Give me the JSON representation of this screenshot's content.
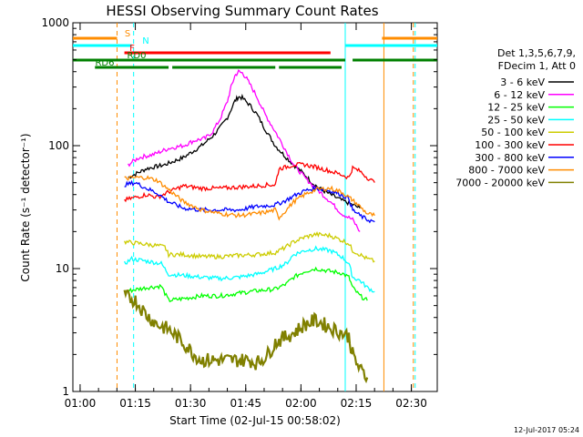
{
  "chart_data": {
    "type": "line",
    "title": "HESSI Observing Summary Count Rates",
    "xlabel": "Start Time (02-Jul-15 00:58:02)",
    "ylabel": "Count Rate (s⁻¹ detector⁻¹)",
    "yscale": "log",
    "ylim": [
      1,
      1000
    ],
    "xlim_minutes": [
      0,
      99
    ],
    "x_ticks": [
      "01:00",
      "01:15",
      "01:30",
      "01:45",
      "02:00",
      "02:15",
      "02:30"
    ],
    "y_ticks": [
      "1",
      "10",
      "100",
      "1000"
    ],
    "footer": "12-Jul-2017 05:24",
    "legend_header": [
      "Det 1,3,5,6,7,9,",
      "FDecim 1, Att 0"
    ],
    "legend_position": "right",
    "series": [
      {
        "name": "3 - 6 keV",
        "color": "#000000",
        "x": [
          15,
          20,
          25,
          30,
          35,
          38,
          40,
          42,
          44,
          45,
          46,
          48,
          50,
          52,
          55,
          58,
          60,
          63,
          65,
          67,
          70,
          73,
          76,
          78
        ],
        "y": [
          55,
          65,
          70,
          80,
          100,
          120,
          140,
          170,
          230,
          250,
          245,
          215,
          180,
          140,
          100,
          80,
          70,
          58,
          50,
          45,
          40,
          36,
          33,
          31
        ]
      },
      {
        "name": "6 - 12 keV",
        "color": "#ff00ff",
        "x": [
          15,
          18,
          22,
          26,
          30,
          33,
          36,
          38,
          40,
          42,
          43,
          44,
          45,
          46,
          47,
          48,
          50,
          52,
          55,
          58,
          60,
          63,
          66,
          70,
          73,
          76,
          78
        ],
        "y": [
          70,
          80,
          85,
          95,
          100,
          110,
          115,
          130,
          165,
          230,
          300,
          370,
          400,
          390,
          360,
          320,
          250,
          185,
          130,
          90,
          70,
          55,
          45,
          35,
          28,
          25,
          20
        ]
      },
      {
        "name": "12 - 25 keV",
        "color": "#00ff00",
        "x": [
          14,
          20,
          24,
          26,
          30,
          35,
          40,
          45,
          50,
          55,
          58,
          60,
          63,
          66,
          70,
          73,
          75,
          76,
          78,
          80
        ],
        "y": [
          6.5,
          7,
          7.2,
          5.5,
          5.7,
          6,
          6,
          6.3,
          6.6,
          6.8,
          7.5,
          8.5,
          9.5,
          10,
          9.5,
          9.2,
          8.5,
          7,
          6,
          5.5
        ]
      },
      {
        "name": "25 - 50 keV",
        "color": "#00ffff",
        "x": [
          14,
          16,
          20,
          24,
          26,
          30,
          35,
          40,
          45,
          50,
          55,
          58,
          60,
          63,
          66,
          70,
          73,
          75,
          76,
          78,
          80,
          82
        ],
        "y": [
          11,
          12,
          11.5,
          11,
          9,
          8.8,
          8.5,
          8.3,
          8.5,
          9,
          10,
          11,
          13,
          14,
          14.5,
          14,
          12.5,
          11,
          8.5,
          8,
          7,
          6.5
        ]
      },
      {
        "name": "50 - 100 keV",
        "color": "#cccc00",
        "x": [
          14,
          18,
          22,
          25,
          26,
          30,
          35,
          40,
          45,
          50,
          55,
          58,
          60,
          63,
          66,
          70,
          73,
          75,
          76,
          78,
          80,
          82
        ],
        "y": [
          16.5,
          16,
          15.5,
          15,
          13,
          13,
          12.5,
          12.5,
          12.8,
          13,
          13.5,
          15,
          16.5,
          18,
          19,
          18.5,
          17,
          16,
          14,
          13,
          12,
          11.5
        ]
      },
      {
        "name": "100 - 300 keV",
        "color": "#ff0000",
        "x": [
          14,
          17,
          20,
          23,
          26,
          30,
          35,
          40,
          45,
          50,
          53,
          55,
          56,
          58,
          60,
          63,
          66,
          70,
          73,
          75,
          76,
          78,
          80,
          82
        ],
        "y": [
          36,
          38,
          40,
          38,
          42,
          47,
          45,
          45,
          46,
          47,
          48,
          48,
          65,
          67,
          70,
          70,
          67,
          62,
          58,
          55,
          66,
          62,
          55,
          50
        ]
      },
      {
        "name": "300 - 800 keV",
        "color": "#0000ff",
        "x": [
          14,
          17,
          20,
          23,
          26,
          30,
          35,
          40,
          45,
          50,
          55,
          58,
          60,
          63,
          66,
          70,
          73,
          75,
          76,
          78,
          80,
          82
        ],
        "y": [
          48,
          50,
          45,
          41,
          35,
          31,
          30,
          30,
          30,
          32,
          33,
          36,
          39,
          43,
          45,
          43,
          40,
          37,
          30,
          27,
          25,
          24
        ]
      },
      {
        "name": "800 - 7000 keV",
        "color": "#ff8c00",
        "x": [
          14,
          17,
          20,
          23,
          26,
          30,
          35,
          40,
          45,
          50,
          53,
          55,
          56,
          58,
          60,
          63,
          66,
          70,
          73,
          75,
          76,
          78,
          80,
          82
        ],
        "y": [
          54,
          55,
          55,
          52,
          44,
          35,
          30,
          28,
          27,
          28,
          29,
          30,
          26,
          30,
          35,
          40,
          44,
          45,
          42,
          38,
          36,
          32,
          28,
          27
        ]
      },
      {
        "name": "7000 - 20000 keV",
        "color": "#808000",
        "x": [
          14,
          17,
          20,
          23,
          26,
          30,
          33,
          35,
          40,
          45,
          48,
          50,
          53,
          55,
          58,
          60,
          63,
          66,
          70,
          73,
          75,
          76,
          78,
          80
        ],
        "y": [
          6,
          5.5,
          4.2,
          3.5,
          3.2,
          2.5,
          2.0,
          1.8,
          1.8,
          1.8,
          1.8,
          1.7,
          2.0,
          2.5,
          2.8,
          3.0,
          3.5,
          3.8,
          3.3,
          3.0,
          2.8,
          2.0,
          1.5,
          1.3
        ]
      }
    ],
    "flags": [
      {
        "label": "S",
        "color": "#ff8c00",
        "segments": [
          [
            0,
            12
          ],
          [
            84,
            99
          ]
        ]
      },
      {
        "label": "N",
        "color": "#00ffff",
        "segments": [
          [
            0,
            16
          ],
          [
            74,
            99
          ]
        ]
      },
      {
        "label": "F",
        "color": "#ff0000",
        "segments": [
          [
            14,
            70
          ]
        ]
      },
      {
        "label": "RD0",
        "color": "#008000",
        "segments": [
          [
            0,
            74
          ],
          [
            76,
            99
          ]
        ]
      },
      {
        "label": "RD6",
        "color": "#008000",
        "segments": [
          [
            6,
            26
          ],
          [
            27,
            55
          ],
          [
            56,
            73
          ]
        ]
      }
    ],
    "vlines": [
      {
        "x": 12.0,
        "color": "#ff8c00",
        "style": "dashed"
      },
      {
        "x": 16.5,
        "color": "#00ffff",
        "style": "dashed"
      },
      {
        "x": 74.0,
        "color": "#00ffff",
        "style": "solid"
      },
      {
        "x": 84.5,
        "color": "#ff8c00",
        "style": "solid"
      },
      {
        "x": 92.5,
        "color": "#ff8c00",
        "style": "dashed"
      },
      {
        "x": 93.0,
        "color": "#00ffff",
        "style": "dashed"
      }
    ]
  }
}
